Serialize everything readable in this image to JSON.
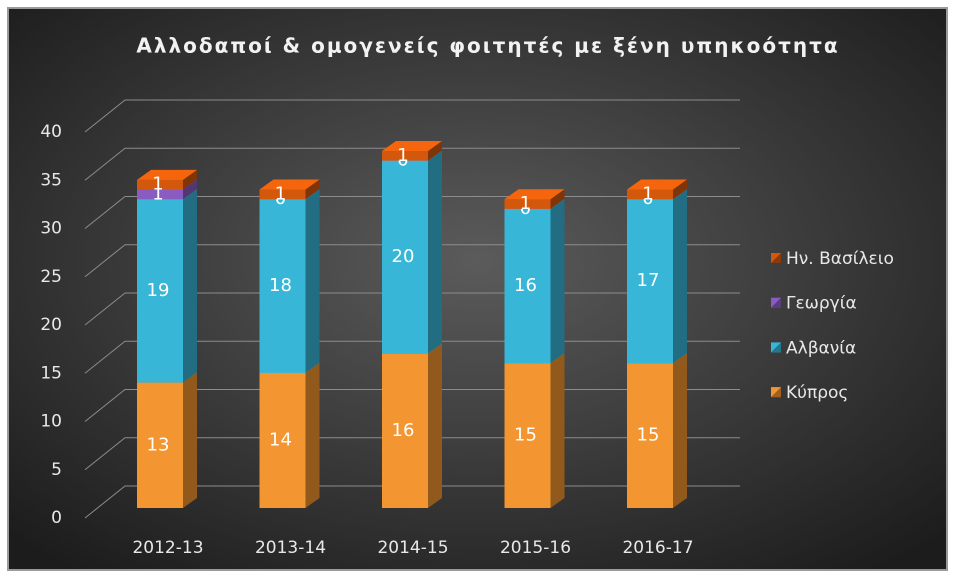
{
  "chart_data": {
    "type": "bar3d_stacked",
    "title": "Αλλοδαποί & ομογενείς φοιτητές με ξένη υπηκοότητα",
    "categories": [
      "2012-13",
      "2013-14",
      "2014-15",
      "2015-16",
      "2016-17"
    ],
    "series": [
      {
        "name": "Κύπρος",
        "color": "#f39530",
        "values": [
          13,
          14,
          16,
          15,
          15
        ]
      },
      {
        "name": "Αλβανία",
        "color": "#38b6d8",
        "values": [
          19,
          18,
          20,
          16,
          17
        ]
      },
      {
        "name": "Γεωργία",
        "color": "#8a5cc2",
        "values": [
          1,
          0,
          0,
          0,
          0
        ]
      },
      {
        "name": "Ην. Βασίλειο",
        "color": "#d4580c",
        "values": [
          1,
          1,
          1,
          1,
          1
        ]
      }
    ],
    "ylim": [
      0,
      40
    ],
    "yticks": [
      0,
      5,
      10,
      15,
      20,
      25,
      30,
      35,
      40
    ],
    "grid": true,
    "legend": "right"
  }
}
